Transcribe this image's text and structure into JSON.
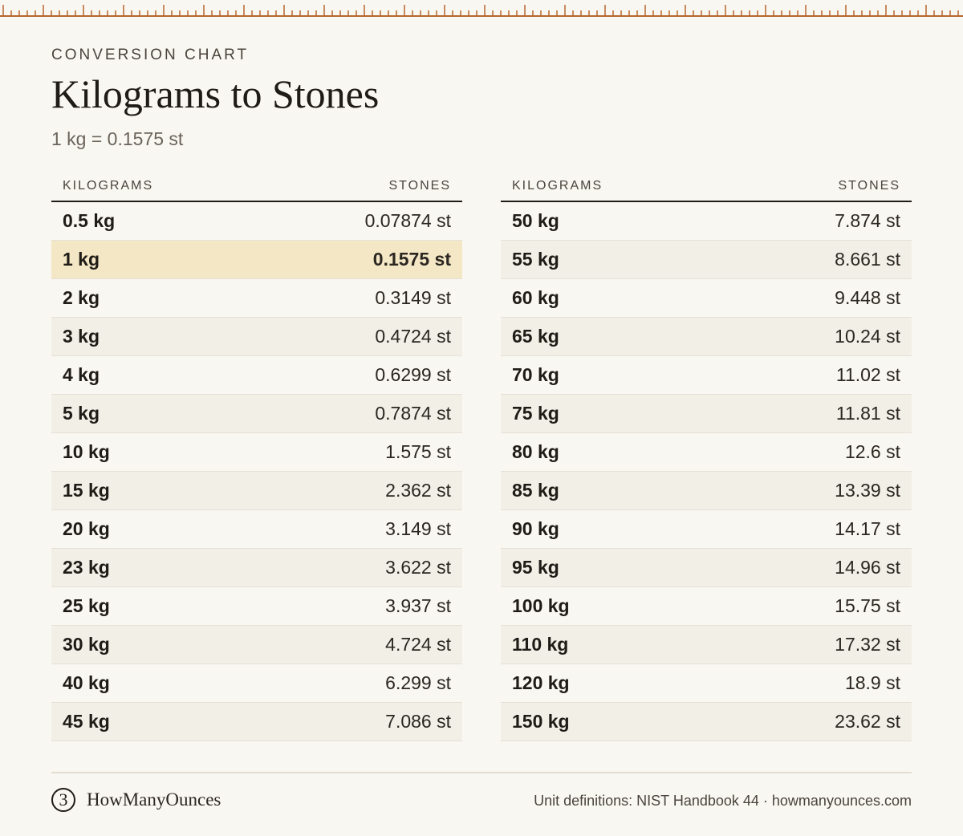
{
  "header": {
    "eyebrow": "CONVERSION CHART",
    "title": "Kilograms to Stones",
    "subtitle": "1 kg = 0.1575 st"
  },
  "colors": {
    "ruler": "#b8672f",
    "highlight": "#f4e7c6",
    "alt_row": "#f2efe7"
  },
  "tables": [
    {
      "col_kg": "KILOGRAMS",
      "col_st": "STONES",
      "rows": [
        {
          "kg": "0.5 kg",
          "st": "0.07874 st"
        },
        {
          "kg": "1 kg",
          "st": "0.1575 st",
          "highlight": true
        },
        {
          "kg": "2 kg",
          "st": "0.3149 st"
        },
        {
          "kg": "3 kg",
          "st": "0.4724 st"
        },
        {
          "kg": "4 kg",
          "st": "0.6299 st"
        },
        {
          "kg": "5 kg",
          "st": "0.7874 st"
        },
        {
          "kg": "10 kg",
          "st": "1.575 st"
        },
        {
          "kg": "15 kg",
          "st": "2.362 st"
        },
        {
          "kg": "20 kg",
          "st": "3.149 st"
        },
        {
          "kg": "23 kg",
          "st": "3.622 st"
        },
        {
          "kg": "25 kg",
          "st": "3.937 st"
        },
        {
          "kg": "30 kg",
          "st": "4.724 st"
        },
        {
          "kg": "40 kg",
          "st": "6.299 st"
        },
        {
          "kg": "45 kg",
          "st": "7.086 st"
        }
      ]
    },
    {
      "col_kg": "KILOGRAMS",
      "col_st": "STONES",
      "rows": [
        {
          "kg": "50 kg",
          "st": "7.874 st"
        },
        {
          "kg": "55 kg",
          "st": "8.661 st"
        },
        {
          "kg": "60 kg",
          "st": "9.448 st"
        },
        {
          "kg": "65 kg",
          "st": "10.24 st"
        },
        {
          "kg": "70 kg",
          "st": "11.02 st"
        },
        {
          "kg": "75 kg",
          "st": "11.81 st"
        },
        {
          "kg": "80 kg",
          "st": "12.6 st"
        },
        {
          "kg": "85 kg",
          "st": "13.39 st"
        },
        {
          "kg": "90 kg",
          "st": "14.17 st"
        },
        {
          "kg": "95 kg",
          "st": "14.96 st"
        },
        {
          "kg": "100 kg",
          "st": "15.75 st"
        },
        {
          "kg": "110 kg",
          "st": "17.32 st"
        },
        {
          "kg": "120 kg",
          "st": "18.9 st"
        },
        {
          "kg": "150 kg",
          "st": "23.62 st"
        }
      ]
    }
  ],
  "footer": {
    "logo_icon": "ounce-3-logo-icon",
    "logo_glyph": "3",
    "brand": "HowManyOunces",
    "note": "Unit definitions: NIST Handbook 44 · howmanyounces.com"
  }
}
